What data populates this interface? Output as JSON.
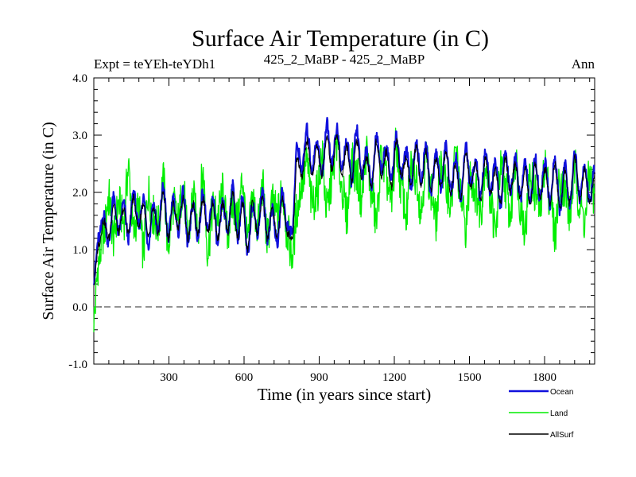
{
  "chart_data": {
    "type": "line",
    "title": "Surface Air Temperature (in C)",
    "subtitle_left": "Expt = teYEh-teYDh1",
    "subtitle_center": "425_2_MaBP - 425_2_MaBP",
    "subtitle_right": "Ann",
    "xlabel": "Time (in years since start)",
    "ylabel": "Surface Air Temperature (in C)",
    "xlim": [
      0,
      2000
    ],
    "ylim": [
      -1.0,
      4.0
    ],
    "x_ticks": [
      300,
      600,
      900,
      1200,
      1500,
      1800
    ],
    "x_tick_labels": [
      "300",
      "600",
      "900",
      "1200",
      "1500",
      "1800"
    ],
    "y_ticks": [
      -1.0,
      0.0,
      1.0,
      2.0,
      3.0,
      4.0
    ],
    "y_tick_labels": [
      "-1.0",
      "0.0",
      "1.0",
      "2.0",
      "3.0",
      "4.0"
    ],
    "reference_line": {
      "y": 0.0,
      "style": "dashed"
    },
    "legend_position": "bottom-right",
    "series": [
      {
        "name": "Land",
        "color": "#00ee00",
        "values": [
          -0.2,
          0.8,
          1.3,
          1.9,
          1.2,
          1.8,
          1.5,
          2.4,
          1.3,
          1.7,
          1.0,
          2.0,
          1.6,
          1.4,
          2.2,
          1.1,
          1.8,
          1.5,
          2.1,
          1.2,
          1.9,
          1.4,
          2.3,
          1.0,
          1.7,
          1.6,
          2.0,
          1.3,
          1.8,
          1.5,
          2.2,
          1.1,
          1.9,
          1.4,
          2.1,
          1.2,
          1.8,
          1.6,
          2.0,
          1.3,
          0.9,
          1.7,
          2.2,
          2.5,
          1.8,
          2.0,
          2.6,
          1.7,
          2.2,
          2.9,
          2.1,
          1.6,
          2.5,
          2.3,
          1.9,
          2.7,
          2.0,
          1.5,
          2.6,
          2.2,
          1.8,
          2.8,
          2.1,
          1.6,
          2.4,
          2.3,
          1.7,
          2.6,
          2.0,
          1.5,
          2.5,
          2.1,
          1.8,
          2.7,
          1.9,
          1.4,
          2.3,
          2.0,
          1.7,
          2.5,
          1.9,
          1.3,
          2.4,
          2.1,
          1.6,
          2.6,
          1.8,
          1.4,
          2.3,
          2.0,
          1.7,
          2.5,
          1.9,
          1.3,
          2.2,
          2.0,
          1.6,
          2.4,
          1.8,
          1.5,
          2.3,
          1.9
        ]
      },
      {
        "name": "Ocean",
        "color": "#1010dd",
        "values": [
          0.5,
          1.2,
          1.6,
          1.1,
          1.9,
          1.3,
          1.8,
          1.2,
          2.0,
          1.4,
          1.9,
          1.1,
          1.8,
          1.3,
          2.1,
          1.2,
          1.9,
          1.3,
          2.0,
          1.1,
          1.8,
          1.2,
          2.0,
          1.3,
          1.9,
          1.1,
          1.8,
          1.3,
          2.1,
          1.2,
          1.9,
          0.9,
          1.8,
          1.3,
          2.0,
          1.2,
          1.7,
          1.1,
          2.0,
          1.4,
          1.3,
          2.8,
          2.4,
          3.1,
          2.4,
          2.9,
          2.3,
          3.2,
          2.5,
          3.1,
          2.4,
          2.9,
          2.2,
          3.1,
          2.3,
          2.7,
          2.1,
          3.0,
          2.4,
          2.8,
          2.2,
          3.0,
          2.3,
          2.7,
          2.1,
          2.9,
          2.2,
          2.8,
          2.0,
          2.7,
          2.1,
          2.8,
          2.0,
          2.6,
          1.9,
          2.8,
          2.1,
          2.6,
          1.9,
          2.7,
          2.0,
          2.5,
          1.8,
          2.7,
          2.0,
          2.6,
          1.9,
          2.5,
          1.8,
          2.6,
          1.9,
          2.5,
          1.8,
          2.6,
          1.7,
          2.5,
          1.8,
          2.7,
          1.9,
          2.5,
          1.8,
          2.4
        ]
      },
      {
        "name": "AllSurf",
        "color": "#000000",
        "values": [
          0.4,
          1.1,
          1.5,
          1.2,
          1.8,
          1.3,
          1.7,
          1.3,
          1.9,
          1.4,
          1.8,
          1.2,
          1.7,
          1.3,
          2.0,
          1.2,
          1.8,
          1.4,
          1.9,
          1.2,
          1.8,
          1.3,
          1.9,
          1.3,
          1.8,
          1.2,
          1.8,
          1.3,
          2.0,
          1.2,
          1.8,
          1.0,
          1.8,
          1.3,
          1.9,
          1.2,
          1.7,
          1.2,
          1.9,
          1.3,
          1.2,
          2.6,
          2.3,
          2.9,
          2.3,
          2.8,
          2.3,
          3.0,
          2.4,
          3.0,
          2.3,
          2.8,
          2.2,
          2.9,
          2.3,
          2.6,
          2.1,
          2.9,
          2.3,
          2.7,
          2.1,
          2.9,
          2.3,
          2.6,
          2.1,
          2.8,
          2.1,
          2.7,
          2.0,
          2.6,
          2.1,
          2.7,
          2.0,
          2.5,
          1.9,
          2.7,
          2.1,
          2.5,
          1.9,
          2.6,
          2.0,
          2.4,
          1.8,
          2.6,
          2.0,
          2.5,
          1.9,
          2.4,
          1.8,
          2.5,
          1.9,
          2.4,
          1.8,
          2.5,
          1.7,
          2.4,
          1.8,
          2.6,
          1.9,
          2.4,
          1.8,
          2.3
        ]
      }
    ]
  }
}
